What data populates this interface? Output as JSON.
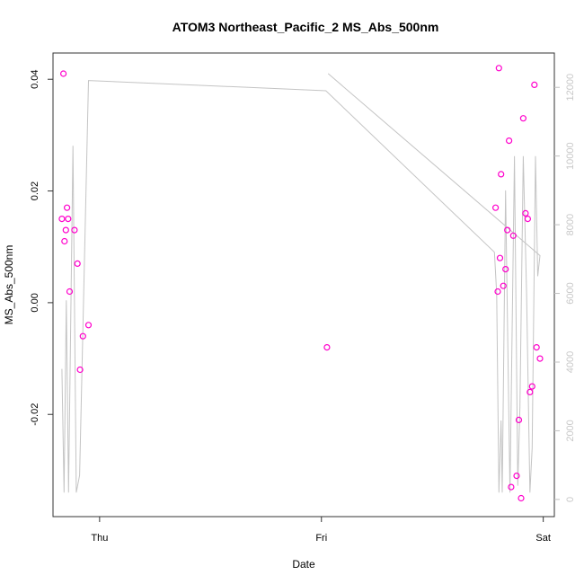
{
  "chart_data": {
    "type": "scatter",
    "title": "ATOM3 Northeast_Pacific_2 MS_Abs_500nm",
    "xlabel": "Date",
    "ylabel": "MS_Abs_500nm",
    "x_ticks": [
      {
        "label": "Thu",
        "value": 0
      },
      {
        "label": "Fri",
        "value": 1
      },
      {
        "label": "Sat",
        "value": 2
      }
    ],
    "xlim": [
      -0.21,
      2.05
    ],
    "ylim": [
      -0.0383,
      0.0447
    ],
    "y_ticks": [
      -0.02,
      0.0,
      0.02,
      0.04
    ],
    "y_tick_labels": [
      "-0.02",
      "0.00",
      "0.02",
      "0.04"
    ],
    "y2lim": [
      -500,
      13000
    ],
    "y2_ticks": [
      0,
      2000,
      4000,
      6000,
      8000,
      10000,
      12000
    ],
    "y2_tick_labels": [
      "0",
      "2000",
      "4000",
      "6000",
      "8000",
      "10000",
      "12000"
    ],
    "grid": false,
    "point_color": "#ff00cc",
    "line_color": "#c4c4c4",
    "points": [
      {
        "x": -0.17,
        "y": 0.015
      },
      {
        "x": -0.163,
        "y": 0.041
      },
      {
        "x": -0.158,
        "y": 0.011
      },
      {
        "x": -0.152,
        "y": 0.013
      },
      {
        "x": -0.147,
        "y": 0.017
      },
      {
        "x": -0.142,
        "y": 0.015
      },
      {
        "x": -0.135,
        "y": 0.002
      },
      {
        "x": -0.113,
        "y": 0.013
      },
      {
        "x": -0.1,
        "y": 0.007
      },
      {
        "x": -0.088,
        "y": -0.012
      },
      {
        "x": -0.075,
        "y": -0.006
      },
      {
        "x": -0.05,
        "y": -0.004
      },
      {
        "x": 1.025,
        "y": -0.008
      },
      {
        "x": 1.785,
        "y": 0.017
      },
      {
        "x": 1.795,
        "y": 0.002
      },
      {
        "x": 1.8,
        "y": 0.042
      },
      {
        "x": 1.805,
        "y": 0.008
      },
      {
        "x": 1.81,
        "y": 0.023
      },
      {
        "x": 1.82,
        "y": 0.003
      },
      {
        "x": 1.83,
        "y": 0.006
      },
      {
        "x": 1.838,
        "y": 0.013
      },
      {
        "x": 1.846,
        "y": 0.029
      },
      {
        "x": 1.855,
        "y": -0.033
      },
      {
        "x": 1.865,
        "y": 0.012
      },
      {
        "x": 1.88,
        "y": -0.031
      },
      {
        "x": 1.89,
        "y": -0.021
      },
      {
        "x": 1.9,
        "y": -0.035
      },
      {
        "x": 1.91,
        "y": 0.033
      },
      {
        "x": 1.92,
        "y": 0.016
      },
      {
        "x": 1.93,
        "y": 0.015
      },
      {
        "x": 1.94,
        "y": -0.016
      },
      {
        "x": 1.95,
        "y": -0.015
      },
      {
        "x": 1.96,
        "y": 0.039
      },
      {
        "x": 1.97,
        "y": -0.008
      },
      {
        "x": 1.985,
        "y": -0.01
      }
    ],
    "altitude_series": [
      {
        "x": -0.17,
        "y2": 3800
      },
      {
        "x": -0.16,
        "y2": 200
      },
      {
        "x": -0.15,
        "y2": 5800
      },
      {
        "x": -0.14,
        "y2": 200
      },
      {
        "x": -0.12,
        "y2": 10300
      },
      {
        "x": -0.105,
        "y2": 200
      },
      {
        "x": -0.09,
        "y2": 700
      },
      {
        "x": -0.05,
        "y2": 12200
      },
      {
        "x": 1.02,
        "y2": 11900
      },
      {
        "x": 1.78,
        "y2": 7200
      },
      {
        "x": 1.79,
        "y2": 6000
      },
      {
        "x": 1.8,
        "y2": 200
      },
      {
        "x": 1.81,
        "y2": 2300
      },
      {
        "x": 1.815,
        "y2": 200
      },
      {
        "x": 1.83,
        "y2": 9000
      },
      {
        "x": 1.85,
        "y2": 200
      },
      {
        "x": 1.87,
        "y2": 10000
      },
      {
        "x": 1.885,
        "y2": 400
      },
      {
        "x": 1.895,
        "y2": 2700
      },
      {
        "x": 1.91,
        "y2": 10000
      },
      {
        "x": 1.925,
        "y2": 6000
      },
      {
        "x": 1.94,
        "y2": 200
      },
      {
        "x": 1.95,
        "y2": 1500
      },
      {
        "x": 1.965,
        "y2": 10000
      },
      {
        "x": 1.975,
        "y2": 6500
      },
      {
        "x": 1.985,
        "y2": 7100
      },
      {
        "x": 1.03,
        "y2": 12400
      }
    ]
  }
}
